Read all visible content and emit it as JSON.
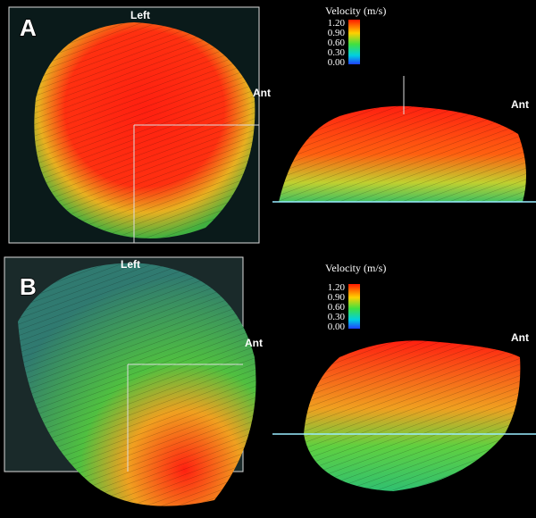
{
  "panels": [
    {
      "label": "A",
      "top_label": "Left",
      "side_label": "Ant"
    },
    {
      "label": "B",
      "top_label": "Left",
      "side_label": "Ant"
    }
  ],
  "side_views": [
    {
      "legend": {
        "title": "Velocity (m/s)",
        "ticks": [
          "1.20",
          "0.90",
          "0.60",
          "0.30",
          "0.00"
        ]
      },
      "side_label": "Ant"
    },
    {
      "legend": {
        "title": "Velocity (m/s)",
        "ticks": [
          "1.20",
          "0.90",
          "0.60",
          "0.30",
          "0.00"
        ]
      },
      "side_label": "Ant"
    }
  ]
}
